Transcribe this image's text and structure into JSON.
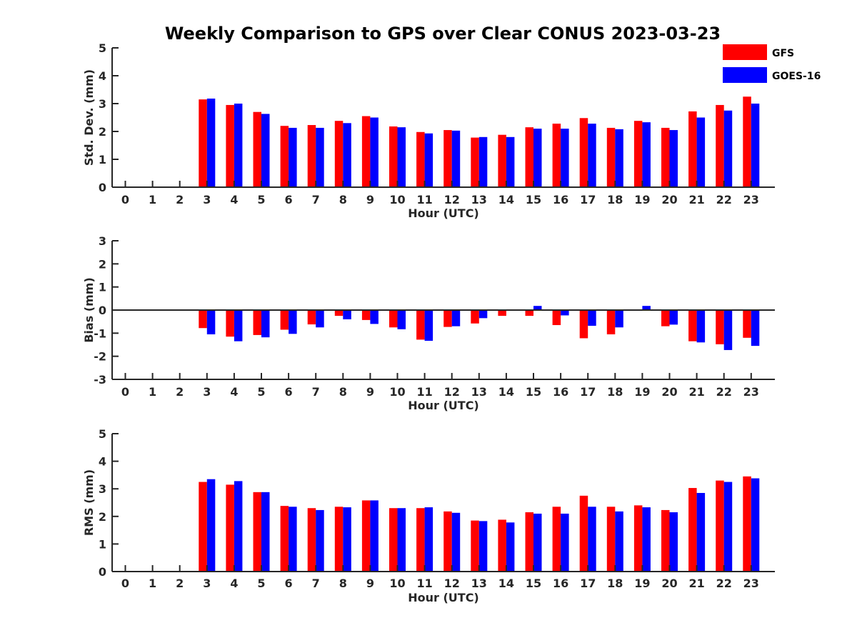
{
  "title": "Weekly Comparison to GPS over Clear CONUS 2023-03-23",
  "legend": [
    {
      "name": "GFS",
      "color": "#ff0000"
    },
    {
      "name": "GOES-16",
      "color": "#0000ff"
    }
  ],
  "chart_data": [
    {
      "type": "bar",
      "xlabel": "Hour (UTC)",
      "ylabel": "Std. Dev. (mm)",
      "ylim": [
        0,
        5
      ],
      "yticks": [
        0,
        1,
        2,
        3,
        4,
        5
      ],
      "categories": [
        "0",
        "1",
        "2",
        "3",
        "4",
        "5",
        "6",
        "7",
        "8",
        "9",
        "10",
        "11",
        "12",
        "13",
        "14",
        "15",
        "16",
        "17",
        "18",
        "19",
        "20",
        "21",
        "22",
        "23"
      ],
      "series": [
        {
          "name": "GFS",
          "color": "#ff0000",
          "values": [
            null,
            null,
            null,
            3.15,
            2.95,
            2.7,
            2.2,
            2.23,
            2.38,
            2.55,
            2.18,
            1.98,
            2.05,
            1.78,
            1.88,
            2.15,
            2.28,
            2.48,
            2.13,
            2.38,
            2.13,
            2.72,
            2.95,
            3.25
          ]
        },
        {
          "name": "GOES-16",
          "color": "#0000ff",
          "values": [
            null,
            null,
            null,
            3.18,
            3.0,
            2.63,
            2.13,
            2.13,
            2.3,
            2.5,
            2.15,
            1.93,
            2.03,
            1.8,
            1.8,
            2.1,
            2.1,
            2.28,
            2.08,
            2.33,
            2.05,
            2.5,
            2.75,
            3.0
          ]
        }
      ]
    },
    {
      "type": "bar",
      "xlabel": "Hour (UTC)",
      "ylabel": "Bias (mm)",
      "ylim": [
        -3,
        3
      ],
      "yticks": [
        -3,
        -2,
        -1,
        0,
        1,
        2,
        3
      ],
      "categories": [
        "0",
        "1",
        "2",
        "3",
        "4",
        "5",
        "6",
        "7",
        "8",
        "9",
        "10",
        "11",
        "12",
        "13",
        "14",
        "15",
        "16",
        "17",
        "18",
        "19",
        "20",
        "21",
        "22",
        "23"
      ],
      "series": [
        {
          "name": "GFS",
          "color": "#ff0000",
          "values": [
            null,
            null,
            null,
            -0.78,
            -1.15,
            -1.08,
            -0.85,
            -0.62,
            -0.25,
            -0.43,
            -0.75,
            -1.28,
            -0.73,
            -0.58,
            -0.25,
            -0.25,
            -0.65,
            -1.22,
            -1.05,
            0.0,
            -0.7,
            -1.35,
            -1.48,
            -1.2
          ]
        },
        {
          "name": "GOES-16",
          "color": "#0000ff",
          "values": [
            null,
            null,
            null,
            -1.05,
            -1.35,
            -1.18,
            -1.03,
            -0.75,
            -0.4,
            -0.6,
            -0.83,
            -1.33,
            -0.7,
            -0.35,
            0.03,
            0.18,
            -0.23,
            -0.68,
            -0.75,
            0.18,
            -0.63,
            -1.4,
            -1.73,
            -1.55
          ]
        }
      ]
    },
    {
      "type": "bar",
      "xlabel": "Hour (UTC)",
      "ylabel": "RMS (mm)",
      "ylim": [
        0,
        5
      ],
      "yticks": [
        0,
        1,
        2,
        3,
        4,
        5
      ],
      "categories": [
        "0",
        "1",
        "2",
        "3",
        "4",
        "5",
        "6",
        "7",
        "8",
        "9",
        "10",
        "11",
        "12",
        "13",
        "14",
        "15",
        "16",
        "17",
        "18",
        "19",
        "20",
        "21",
        "22",
        "23"
      ],
      "series": [
        {
          "name": "GFS",
          "color": "#ff0000",
          "values": [
            null,
            null,
            null,
            3.25,
            3.15,
            2.88,
            2.38,
            2.3,
            2.35,
            2.58,
            2.3,
            2.3,
            2.18,
            1.85,
            1.88,
            2.15,
            2.35,
            2.75,
            2.35,
            2.4,
            2.23,
            3.03,
            3.3,
            3.45
          ]
        },
        {
          "name": "GOES-16",
          "color": "#0000ff",
          "values": [
            null,
            null,
            null,
            3.35,
            3.28,
            2.88,
            2.35,
            2.23,
            2.33,
            2.58,
            2.3,
            2.33,
            2.13,
            1.83,
            1.78,
            2.1,
            2.1,
            2.35,
            2.18,
            2.33,
            2.15,
            2.85,
            3.25,
            3.38
          ]
        }
      ]
    }
  ]
}
